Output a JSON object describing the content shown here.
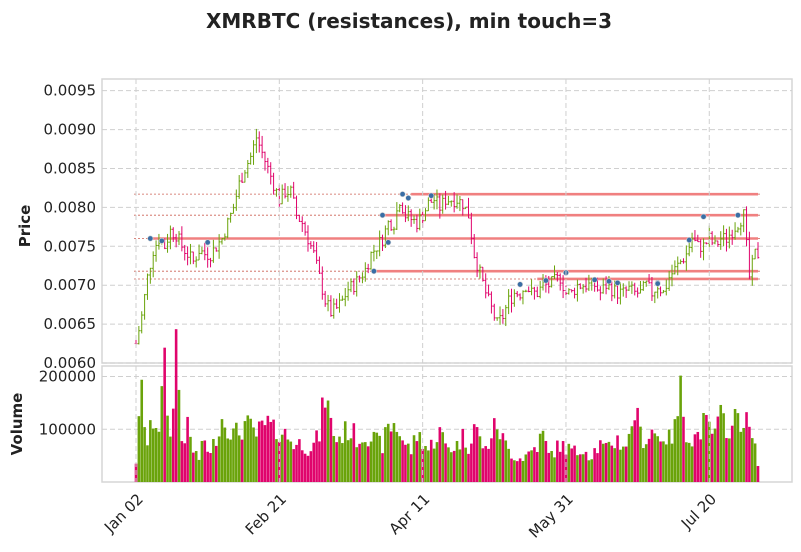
{
  "chart_data": {
    "type": "ohlc",
    "title": "XMRBTC (resistances), min touch=3",
    "price_axis": {
      "ylabel": "Price",
      "ylim": [
        0.006,
        0.00965
      ],
      "ticks": [
        "0.0060",
        "0.0065",
        "0.0070",
        "0.0075",
        "0.0080",
        "0.0085",
        "0.0090",
        "0.0095"
      ]
    },
    "volume_axis": {
      "ylabel": "Volume",
      "ylim": [
        0,
        220000
      ],
      "ticks": [
        "100000",
        "200000"
      ]
    },
    "x_axis": {
      "tick_labels": [
        "Jan 02",
        "Feb 21",
        "Apr 11",
        "May 31",
        "Jul 20"
      ],
      "tick_index": [
        0,
        50,
        100,
        150,
        200
      ],
      "n_days": 218
    },
    "grid": true,
    "colors": {
      "up": "#6aa30a",
      "down": "#e0046c",
      "resistance": "#f08080",
      "marker": "#3a6ea5"
    },
    "price_anchors": [
      [
        0,
        0.00625
      ],
      [
        2,
        0.0066
      ],
      [
        4,
        0.0071
      ],
      [
        6,
        0.00745
      ],
      [
        8,
        0.0076
      ],
      [
        10,
        0.0075
      ],
      [
        12,
        0.0077
      ],
      [
        14,
        0.00765
      ],
      [
        16,
        0.0075
      ],
      [
        18,
        0.0074
      ],
      [
        20,
        0.0073
      ],
      [
        22,
        0.00745
      ],
      [
        24,
        0.0074
      ],
      [
        26,
        0.0074
      ],
      [
        28,
        0.0075
      ],
      [
        30,
        0.0076
      ],
      [
        32,
        0.0078
      ],
      [
        34,
        0.008
      ],
      [
        36,
        0.0083
      ],
      [
        38,
        0.0085
      ],
      [
        40,
        0.00865
      ],
      [
        42,
        0.0089
      ],
      [
        44,
        0.0087
      ],
      [
        46,
        0.0085
      ],
      [
        48,
        0.0083
      ],
      [
        50,
        0.0081
      ],
      [
        52,
        0.0082
      ],
      [
        54,
        0.0082
      ],
      [
        56,
        0.0079
      ],
      [
        58,
        0.0078
      ],
      [
        60,
        0.0076
      ],
      [
        62,
        0.0074
      ],
      [
        64,
        0.0071
      ],
      [
        66,
        0.0068
      ],
      [
        68,
        0.00665
      ],
      [
        70,
        0.0067
      ],
      [
        72,
        0.0068
      ],
      [
        74,
        0.00695
      ],
      [
        76,
        0.007
      ],
      [
        78,
        0.0071
      ],
      [
        80,
        0.0072
      ],
      [
        82,
        0.0074
      ],
      [
        84,
        0.0075
      ],
      [
        86,
        0.0076
      ],
      [
        88,
        0.0078
      ],
      [
        90,
        0.0078
      ],
      [
        92,
        0.0081
      ],
      [
        94,
        0.0079
      ],
      [
        96,
        0.00785
      ],
      [
        98,
        0.0078
      ],
      [
        100,
        0.0079
      ],
      [
        102,
        0.00805
      ],
      [
        104,
        0.0081
      ],
      [
        106,
        0.008
      ],
      [
        108,
        0.0081
      ],
      [
        110,
        0.0081
      ],
      [
        112,
        0.0081
      ],
      [
        114,
        0.00805
      ],
      [
        116,
        0.0079
      ],
      [
        118,
        0.0074
      ],
      [
        120,
        0.00715
      ],
      [
        122,
        0.0069
      ],
      [
        124,
        0.0067
      ],
      [
        126,
        0.0065
      ],
      [
        128,
        0.0066
      ],
      [
        130,
        0.0068
      ],
      [
        132,
        0.0069
      ],
      [
        134,
        0.0069
      ],
      [
        136,
        0.007
      ],
      [
        138,
        0.0069
      ],
      [
        140,
        0.0069
      ],
      [
        142,
        0.007
      ],
      [
        144,
        0.007
      ],
      [
        146,
        0.00705
      ],
      [
        148,
        0.0071
      ],
      [
        150,
        0.0069
      ],
      [
        152,
        0.0069
      ],
      [
        154,
        0.007
      ],
      [
        156,
        0.007
      ],
      [
        158,
        0.007
      ],
      [
        160,
        0.007
      ],
      [
        162,
        0.0069
      ],
      [
        164,
        0.007
      ],
      [
        166,
        0.00695
      ],
      [
        168,
        0.0069
      ],
      [
        170,
        0.0069
      ],
      [
        172,
        0.00695
      ],
      [
        174,
        0.0069
      ],
      [
        176,
        0.0069
      ],
      [
        178,
        0.007
      ],
      [
        180,
        0.0069
      ],
      [
        182,
        0.007
      ],
      [
        184,
        0.0069
      ],
      [
        186,
        0.0071
      ],
      [
        188,
        0.0072
      ],
      [
        190,
        0.0073
      ],
      [
        192,
        0.0074
      ],
      [
        194,
        0.0076
      ],
      [
        196,
        0.0075
      ],
      [
        198,
        0.0075
      ],
      [
        200,
        0.0076
      ],
      [
        202,
        0.0075
      ],
      [
        204,
        0.0076
      ],
      [
        206,
        0.0076
      ],
      [
        208,
        0.0077
      ],
      [
        210,
        0.0078
      ],
      [
        212,
        0.0079
      ],
      [
        214,
        0.0071
      ],
      [
        216,
        0.0074
      ],
      [
        217,
        0.0074
      ]
    ],
    "resistance_lines": [
      {
        "level": 0.0076,
        "start": 5
      },
      {
        "level": 0.0079,
        "start": 86
      },
      {
        "level": 0.00817,
        "start": 96
      },
      {
        "level": 0.00718,
        "start": 83
      },
      {
        "level": 0.00708,
        "start": 140
      }
    ],
    "touch_markers": [
      [
        5,
        0.0076
      ],
      [
        9,
        0.00757
      ],
      [
        25,
        0.00755
      ],
      [
        86,
        0.0079
      ],
      [
        88,
        0.00755
      ],
      [
        93,
        0.00817
      ],
      [
        95,
        0.00812
      ],
      [
        103,
        0.00815
      ],
      [
        83,
        0.00718
      ],
      [
        134,
        0.00701
      ],
      [
        143,
        0.00706
      ],
      [
        150,
        0.00716
      ],
      [
        160,
        0.00707
      ],
      [
        165,
        0.00705
      ],
      [
        168,
        0.00703
      ],
      [
        182,
        0.00703
      ],
      [
        182,
        0.00702
      ],
      [
        193,
        0.00758
      ],
      [
        198,
        0.00788
      ],
      [
        210,
        0.0079
      ]
    ],
    "volume_anchors": [
      [
        0,
        40000
      ],
      [
        2,
        170000
      ],
      [
        4,
        70000
      ],
      [
        6,
        120000
      ],
      [
        8,
        110000
      ],
      [
        10,
        210000
      ],
      [
        12,
        80000
      ],
      [
        14,
        270000
      ],
      [
        16,
        80000
      ],
      [
        18,
        100000
      ],
      [
        20,
        60000
      ],
      [
        22,
        45000
      ],
      [
        24,
        80000
      ],
      [
        26,
        50000
      ],
      [
        28,
        90000
      ],
      [
        30,
        120000
      ],
      [
        32,
        110000
      ],
      [
        34,
        90000
      ],
      [
        36,
        95000
      ],
      [
        38,
        110000
      ],
      [
        40,
        100000
      ],
      [
        42,
        90000
      ],
      [
        44,
        100000
      ],
      [
        46,
        110000
      ],
      [
        48,
        95000
      ],
      [
        50,
        100000
      ],
      [
        52,
        90000
      ],
      [
        54,
        80000
      ],
      [
        56,
        70000
      ],
      [
        58,
        75000
      ],
      [
        60,
        65000
      ],
      [
        62,
        70000
      ],
      [
        64,
        90000
      ],
      [
        66,
        170000
      ],
      [
        68,
        110000
      ],
      [
        70,
        80000
      ],
      [
        72,
        90000
      ],
      [
        74,
        100000
      ],
      [
        76,
        90000
      ],
      [
        78,
        80000
      ],
      [
        80,
        95000
      ],
      [
        82,
        85000
      ],
      [
        84,
        75000
      ],
      [
        86,
        70000
      ],
      [
        88,
        100000
      ],
      [
        90,
        110000
      ],
      [
        92,
        95000
      ],
      [
        94,
        70000
      ],
      [
        96,
        60000
      ],
      [
        98,
        90000
      ],
      [
        100,
        80000
      ],
      [
        102,
        60000
      ],
      [
        104,
        80000
      ],
      [
        106,
        95000
      ],
      [
        108,
        70000
      ],
      [
        110,
        65000
      ],
      [
        112,
        70000
      ],
      [
        114,
        85000
      ],
      [
        116,
        70000
      ],
      [
        118,
        110000
      ],
      [
        120,
        80000
      ],
      [
        122,
        60000
      ],
      [
        124,
        90000
      ],
      [
        126,
        110000
      ],
      [
        128,
        80000
      ],
      [
        130,
        60000
      ],
      [
        132,
        50000
      ],
      [
        134,
        45000
      ],
      [
        136,
        50000
      ],
      [
        138,
        60000
      ],
      [
        140,
        70000
      ],
      [
        142,
        90000
      ],
      [
        144,
        50000
      ],
      [
        146,
        60000
      ],
      [
        148,
        70000
      ],
      [
        150,
        65000
      ],
      [
        152,
        60000
      ],
      [
        154,
        55000
      ],
      [
        156,
        70000
      ],
      [
        158,
        50000
      ],
      [
        160,
        60000
      ],
      [
        162,
        70000
      ],
      [
        164,
        60000
      ],
      [
        166,
        75000
      ],
      [
        168,
        80000
      ],
      [
        170,
        70000
      ],
      [
        172,
        80000
      ],
      [
        174,
        140000
      ],
      [
        176,
        90000
      ],
      [
        178,
        80000
      ],
      [
        180,
        100000
      ],
      [
        182,
        85000
      ],
      [
        184,
        90000
      ],
      [
        186,
        80000
      ],
      [
        188,
        100000
      ],
      [
        190,
        170000
      ],
      [
        192,
        100000
      ],
      [
        194,
        80000
      ],
      [
        196,
        90000
      ],
      [
        198,
        110000
      ],
      [
        200,
        100000
      ],
      [
        202,
        90000
      ],
      [
        204,
        120000
      ],
      [
        206,
        110000
      ],
      [
        208,
        100000
      ],
      [
        210,
        130000
      ],
      [
        212,
        120000
      ],
      [
        214,
        100000
      ],
      [
        216,
        60000
      ],
      [
        217,
        40000
      ]
    ]
  }
}
